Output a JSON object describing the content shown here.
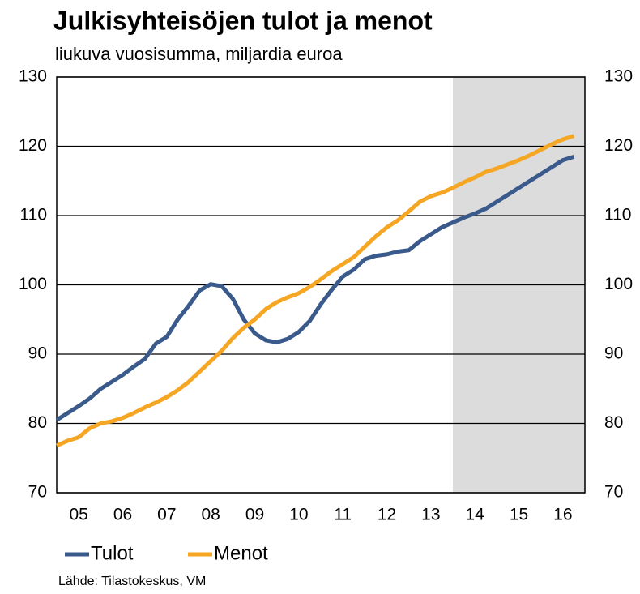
{
  "chart_data": {
    "type": "line",
    "title": "Julkisyhteisöjen tulot ja menot",
    "subtitle": "liukuva vuosisumma, miljardia euroa",
    "source": "Lähde: Tilastokeskus, VM",
    "x": [
      2005.0,
      2005.25,
      2005.5,
      2005.75,
      2006.0,
      2006.25,
      2006.5,
      2006.75,
      2007.0,
      2007.25,
      2007.5,
      2007.75,
      2008.0,
      2008.25,
      2008.5,
      2008.75,
      2009.0,
      2009.25,
      2009.5,
      2009.75,
      2010.0,
      2010.25,
      2010.5,
      2010.75,
      2011.0,
      2011.25,
      2011.5,
      2011.75,
      2012.0,
      2012.25,
      2012.5,
      2012.75,
      2013.0,
      2013.25,
      2013.5,
      2013.75,
      2014.0,
      2014.25,
      2014.5,
      2014.75,
      2015.0,
      2015.25,
      2015.5,
      2015.75,
      2016.0,
      2016.25,
      2016.5,
      2016.75
    ],
    "series": [
      {
        "name": "Tulot",
        "color": "#3a5a8c",
        "values": [
          80.5,
          81.5,
          82.5,
          83.6,
          85.0,
          86.0,
          87.0,
          88.2,
          89.3,
          91.5,
          92.5,
          95.0,
          97.0,
          99.2,
          100.1,
          99.8,
          98.0,
          95.0,
          93.0,
          92.0,
          91.7,
          92.2,
          93.2,
          94.8,
          97.2,
          99.3,
          101.2,
          102.2,
          103.7,
          104.2,
          104.4,
          104.8,
          105.0,
          106.3,
          107.3,
          108.3,
          109.0,
          109.7,
          110.3,
          111.0,
          112.0,
          113.0,
          114.0,
          115.0,
          116.0,
          117.0,
          118.0,
          118.5
        ]
      },
      {
        "name": "Menot",
        "color": "#f5a623",
        "values": [
          76.8,
          77.5,
          78.0,
          79.3,
          80.0,
          80.3,
          80.8,
          81.5,
          82.3,
          83.0,
          83.8,
          84.8,
          86.0,
          87.5,
          89.0,
          90.5,
          92.3,
          93.8,
          95.0,
          96.5,
          97.5,
          98.2,
          98.8,
          99.7,
          100.8,
          102.0,
          103.0,
          104.0,
          105.5,
          107.0,
          108.3,
          109.3,
          110.6,
          112.0,
          112.8,
          113.3,
          114.0,
          114.8,
          115.5,
          116.3,
          116.8,
          117.4,
          118.0,
          118.7,
          119.5,
          120.3,
          121.0,
          121.5
        ]
      }
    ],
    "xlim": [
      2005,
      2017
    ],
    "xticks": [
      {
        "value": 2005.5,
        "label": "05"
      },
      {
        "value": 2006.5,
        "label": "06"
      },
      {
        "value": 2007.5,
        "label": "07"
      },
      {
        "value": 2008.5,
        "label": "08"
      },
      {
        "value": 2009.5,
        "label": "09"
      },
      {
        "value": 2010.5,
        "label": "10"
      },
      {
        "value": 2011.5,
        "label": "11"
      },
      {
        "value": 2012.5,
        "label": "12"
      },
      {
        "value": 2013.5,
        "label": "13"
      },
      {
        "value": 2014.5,
        "label": "14"
      },
      {
        "value": 2015.5,
        "label": "15"
      },
      {
        "value": 2016.5,
        "label": "16"
      }
    ],
    "ylim": [
      70,
      130
    ],
    "yticks": [
      70,
      80,
      90,
      100,
      110,
      120,
      130
    ],
    "y2lim": [
      70,
      130
    ],
    "y2ticks": [
      70,
      80,
      90,
      100,
      110,
      120,
      130
    ],
    "shaded_x_range": [
      2014,
      2017
    ],
    "grid": true
  }
}
